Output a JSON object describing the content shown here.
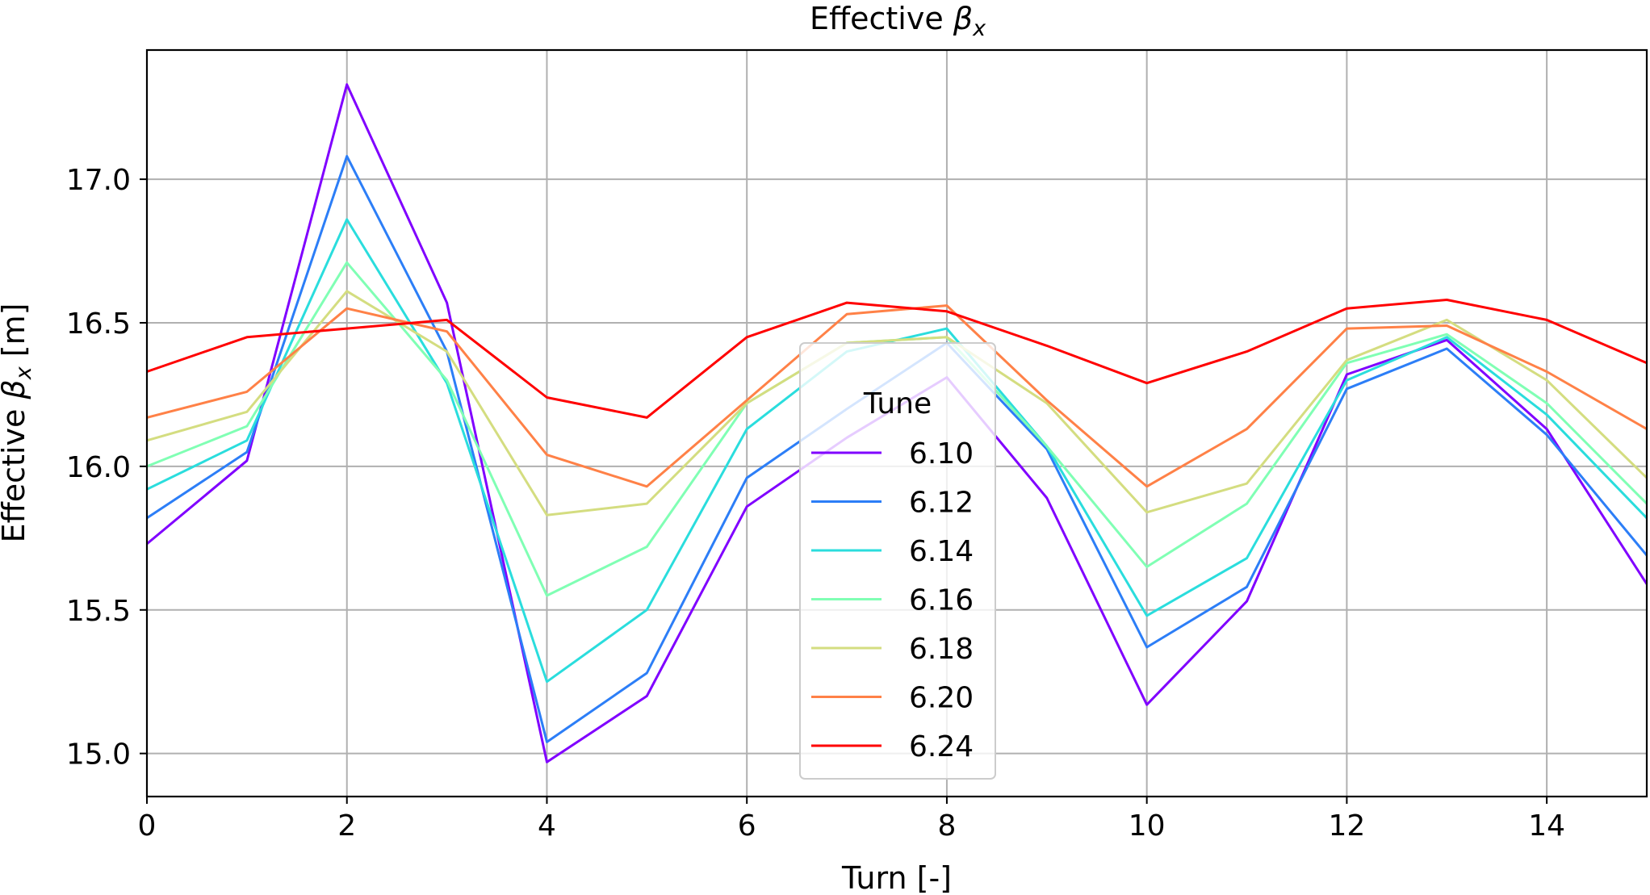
{
  "chart_data": {
    "type": "line",
    "title_main": "Effective ",
    "title_symbol": "β",
    "title_sub": "x",
    "xlabel": "Turn [-]",
    "ylabel_main": "Effective ",
    "ylabel_symbol": "β",
    "ylabel_sub": "x",
    "ylabel_unit": " [m]",
    "xlim": [
      0,
      15
    ],
    "ylim": [
      14.85,
      17.45
    ],
    "xticks": [
      0,
      2,
      4,
      6,
      8,
      10,
      12,
      14
    ],
    "yticks": [
      15.0,
      15.5,
      16.0,
      16.5,
      17.0
    ],
    "ytick_labels": [
      "15.0",
      "15.5",
      "16.0",
      "16.5",
      "17.0"
    ],
    "grid": true,
    "legend_title": "Tune",
    "legend_position": "center-bottom",
    "x": [
      0,
      1,
      2,
      3,
      4,
      5,
      6,
      7,
      8,
      9,
      10,
      11,
      12,
      13,
      14,
      15
    ],
    "series": [
      {
        "name": "6.10",
        "color": "#8000ff",
        "values": [
          15.73,
          16.02,
          17.33,
          16.57,
          14.97,
          15.2,
          15.86,
          16.1,
          16.31,
          15.89,
          15.17,
          15.53,
          16.32,
          16.44,
          16.13,
          15.59
        ]
      },
      {
        "name": "6.12",
        "color": "#2c7ef7",
        "values": [
          15.82,
          16.05,
          17.08,
          16.4,
          15.04,
          15.28,
          15.96,
          16.2,
          16.43,
          16.06,
          15.37,
          15.58,
          16.27,
          16.41,
          16.11,
          15.69
        ]
      },
      {
        "name": "6.14",
        "color": "#2adddd",
        "values": [
          15.92,
          16.09,
          16.86,
          16.29,
          15.25,
          15.5,
          16.13,
          16.4,
          16.48,
          16.07,
          15.48,
          15.68,
          16.3,
          16.45,
          16.18,
          15.82
        ]
      },
      {
        "name": "6.16",
        "color": "#80ffb4",
        "values": [
          16.0,
          16.14,
          16.71,
          16.3,
          15.55,
          15.72,
          16.22,
          16.43,
          16.45,
          16.07,
          15.65,
          15.87,
          16.36,
          16.46,
          16.22,
          15.87
        ]
      },
      {
        "name": "6.18",
        "color": "#d4dd80",
        "values": [
          16.09,
          16.19,
          16.61,
          16.4,
          15.83,
          15.87,
          16.22,
          16.43,
          16.45,
          16.22,
          15.84,
          15.94,
          16.37,
          16.51,
          16.3,
          15.96
        ]
      },
      {
        "name": "6.20",
        "color": "#ff8147",
        "values": [
          16.17,
          16.26,
          16.55,
          16.47,
          16.04,
          15.93,
          16.23,
          16.53,
          16.56,
          16.23,
          15.93,
          16.13,
          16.48,
          16.49,
          16.33,
          16.13
        ]
      },
      {
        "name": "6.24",
        "color": "#ff0000",
        "values": [
          16.33,
          16.45,
          16.48,
          16.51,
          16.24,
          16.17,
          16.45,
          16.57,
          16.54,
          16.42,
          16.29,
          16.4,
          16.55,
          16.58,
          16.51,
          16.36
        ]
      }
    ]
  }
}
